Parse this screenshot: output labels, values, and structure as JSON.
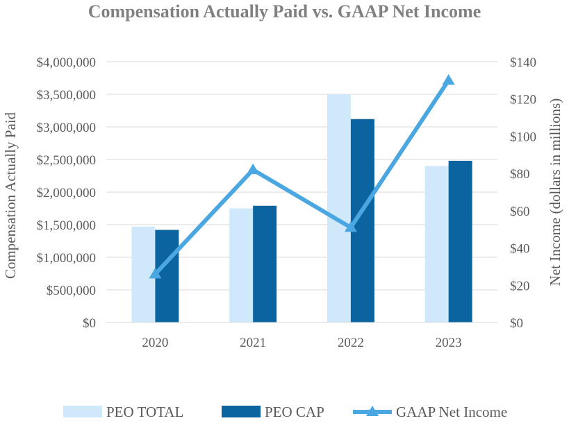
{
  "chart_data": {
    "type": "bar+line",
    "title": "Compensation Actually Paid vs. GAAP Net Income",
    "categories": [
      "2020",
      "2021",
      "2022",
      "2023"
    ],
    "y_left": {
      "label": "Compensation Actually Paid",
      "range": [
        0,
        4000000
      ],
      "ticks": [
        "$0",
        "$500,000",
        "$1,000,000",
        "$1,500,000",
        "$2,000,000",
        "$2,500,000",
        "$3,000,000",
        "$3,500,000",
        "$4,000,000"
      ],
      "tick_values": [
        0,
        500000,
        1000000,
        1500000,
        2000000,
        2500000,
        3000000,
        3500000,
        4000000
      ]
    },
    "y_right": {
      "label": "Net Income (dollars in millions)",
      "range": [
        0,
        140
      ],
      "ticks": [
        "$0",
        "$20",
        "$40",
        "$60",
        "$80",
        "$100",
        "$120",
        "$140"
      ],
      "tick_values": [
        0,
        20,
        40,
        60,
        80,
        100,
        120,
        140
      ]
    },
    "series": [
      {
        "name": "PEO TOTAL",
        "type": "bar",
        "axis": "left",
        "color": "#cfe9fa",
        "values": [
          1470000,
          1750000,
          3500000,
          2400000
        ]
      },
      {
        "name": "PEO CAP",
        "type": "bar",
        "axis": "left",
        "color": "#0b64a0",
        "values": [
          1420000,
          1790000,
          3120000,
          2480000
        ]
      },
      {
        "name": "GAAP Net Income",
        "type": "line",
        "axis": "right",
        "color": "#4ba7e2",
        "marker": "triangle",
        "values": [
          26,
          82,
          51,
          130
        ]
      }
    ],
    "legend_position": "bottom"
  }
}
